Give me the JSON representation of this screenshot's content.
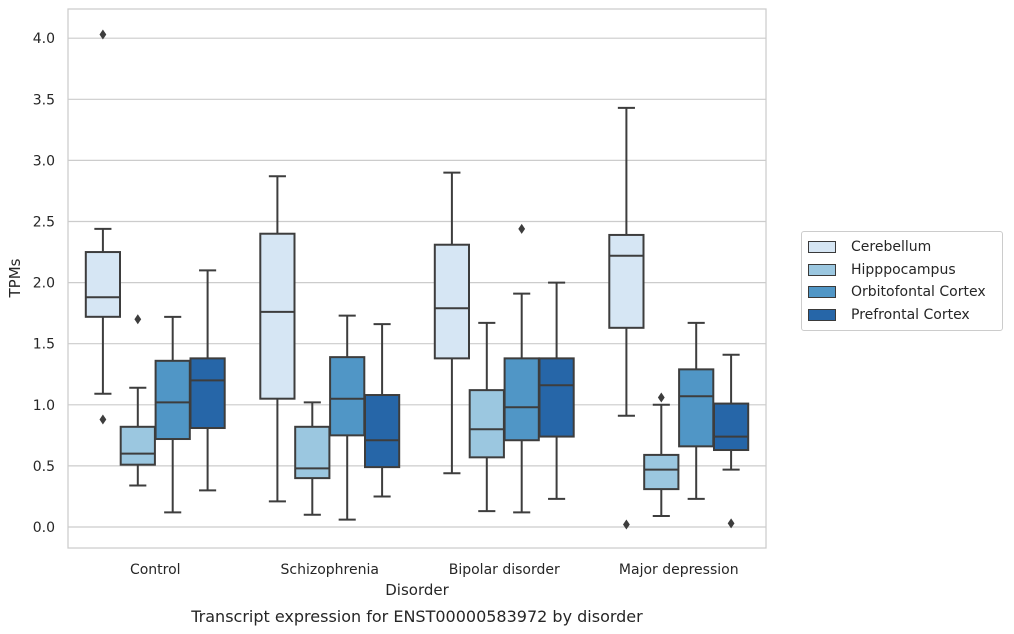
{
  "chart_data": {
    "type": "box",
    "title": "Transcript expression for ENST00000583972 by disorder",
    "xlabel": "Disorder",
    "ylabel": "TPMs",
    "ylim": [
      -0.17,
      4.24
    ],
    "yticks": [
      "0.0",
      "0.5",
      "1.0",
      "1.5",
      "2.0",
      "2.5",
      "3.0",
      "3.5",
      "4.0"
    ],
    "ytick_values": [
      0,
      0.5,
      1.0,
      1.5,
      2.0,
      2.5,
      3.0,
      3.5,
      4.0
    ],
    "grid": true,
    "legend_position": "right",
    "categories": [
      "Control",
      "Schizophrenia",
      "Bipolar disorder",
      "Major depression"
    ],
    "series": [
      {
        "name": "Cerebellum",
        "color": "#d6e6f4",
        "boxes": [
          {
            "whislo": 1.09,
            "q1": 1.72,
            "med": 1.88,
            "q3": 2.25,
            "whishi": 2.44,
            "fliers": [
              4.03,
              0.88
            ]
          },
          {
            "whislo": 0.21,
            "q1": 1.05,
            "med": 1.76,
            "q3": 2.4,
            "whishi": 2.87,
            "fliers": []
          },
          {
            "whislo": 0.44,
            "q1": 1.38,
            "med": 1.79,
            "q3": 2.31,
            "whishi": 2.9,
            "fliers": []
          },
          {
            "whislo": 0.91,
            "q1": 1.63,
            "med": 2.22,
            "q3": 2.39,
            "whishi": 3.43,
            "fliers": [
              0.02
            ]
          }
        ]
      },
      {
        "name": "Hipppocampus",
        "color": "#9bc7e0",
        "boxes": [
          {
            "whislo": 0.34,
            "q1": 0.51,
            "med": 0.6,
            "q3": 0.82,
            "whishi": 1.14,
            "fliers": [
              1.7
            ]
          },
          {
            "whislo": 0.1,
            "q1": 0.4,
            "med": 0.48,
            "q3": 0.82,
            "whishi": 1.02,
            "fliers": []
          },
          {
            "whislo": 0.13,
            "q1": 0.57,
            "med": 0.8,
            "q3": 1.12,
            "whishi": 1.67,
            "fliers": []
          },
          {
            "whislo": 0.09,
            "q1": 0.31,
            "med": 0.47,
            "q3": 0.59,
            "whishi": 1.0,
            "fliers": [
              1.06
            ]
          }
        ]
      },
      {
        "name": "Orbitofontal Cortex",
        "color": "#5096c6",
        "boxes": [
          {
            "whislo": 0.12,
            "q1": 0.72,
            "med": 1.02,
            "q3": 1.36,
            "whishi": 1.72,
            "fliers": []
          },
          {
            "whislo": 0.06,
            "q1": 0.75,
            "med": 1.05,
            "q3": 1.39,
            "whishi": 1.73,
            "fliers": []
          },
          {
            "whislo": 0.12,
            "q1": 0.71,
            "med": 0.98,
            "q3": 1.38,
            "whishi": 1.91,
            "fliers": [
              2.44
            ]
          },
          {
            "whislo": 0.23,
            "q1": 0.66,
            "med": 1.07,
            "q3": 1.29,
            "whishi": 1.67,
            "fliers": []
          }
        ]
      },
      {
        "name": "Prefrontal Cortex",
        "color": "#2666a8",
        "boxes": [
          {
            "whislo": 0.3,
            "q1": 0.81,
            "med": 1.2,
            "q3": 1.38,
            "whishi": 2.1,
            "fliers": []
          },
          {
            "whislo": 0.25,
            "q1": 0.49,
            "med": 0.71,
            "q3": 1.08,
            "whishi": 1.66,
            "fliers": []
          },
          {
            "whislo": 0.23,
            "q1": 0.74,
            "med": 1.16,
            "q3": 1.38,
            "whishi": 2.0,
            "fliers": []
          },
          {
            "whislo": 0.47,
            "q1": 0.63,
            "med": 0.74,
            "q3": 1.01,
            "whishi": 1.41,
            "fliers": [
              0.03
            ]
          }
        ]
      }
    ]
  }
}
